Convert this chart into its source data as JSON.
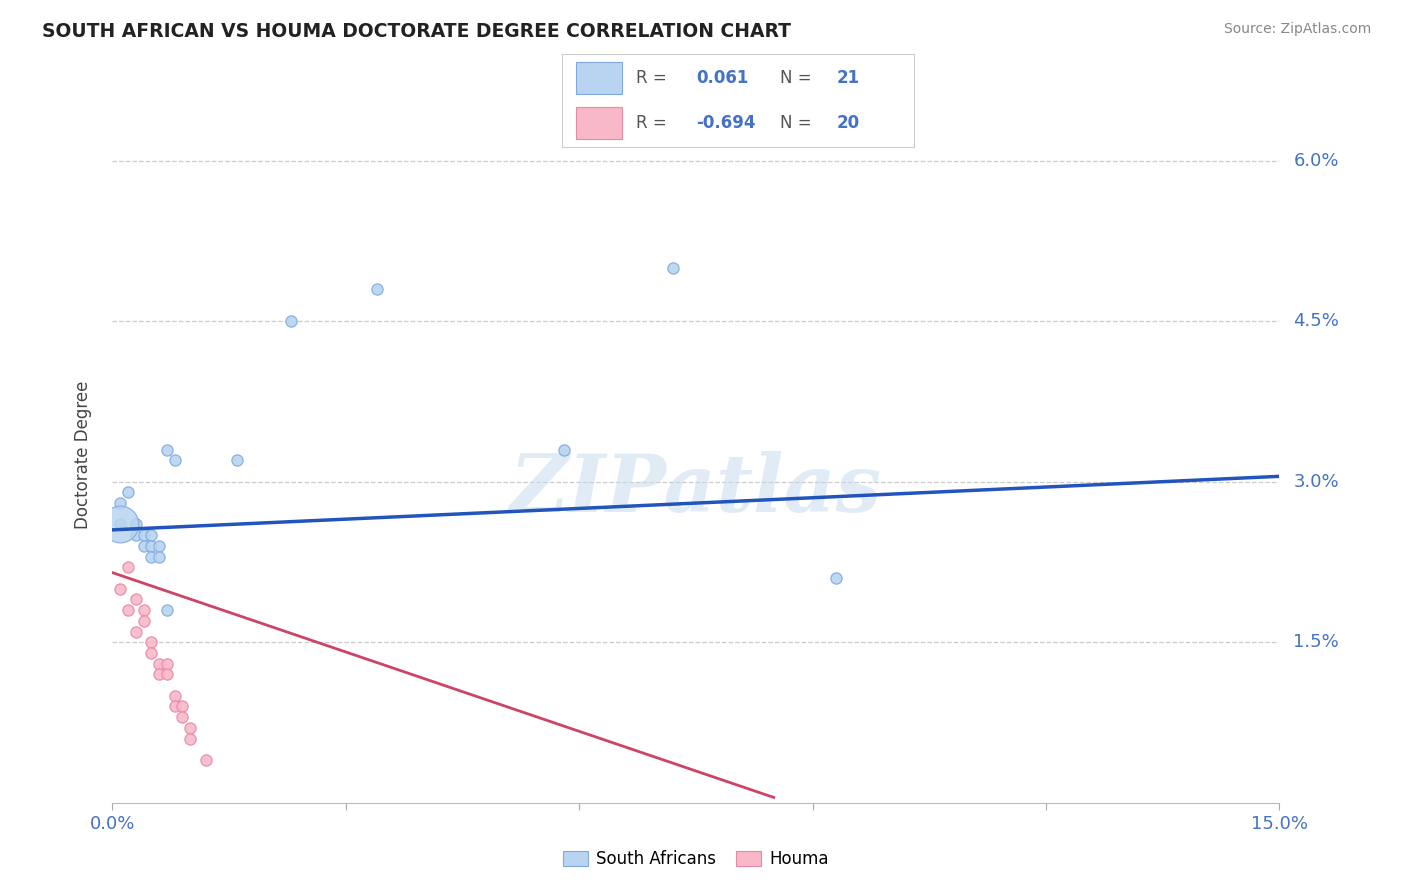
{
  "title": "SOUTH AFRICAN VS HOUMA DOCTORATE DEGREE CORRELATION CHART",
  "source": "Source: ZipAtlas.com",
  "ylabel": "Doctorate Degree",
  "xlim": [
    0.0,
    0.15
  ],
  "ylim": [
    0.0,
    0.065
  ],
  "ytick_vals": [
    0.015,
    0.03,
    0.045,
    0.06
  ],
  "ytick_labels": [
    "1.5%",
    "3.0%",
    "4.5%",
    "6.0%"
  ],
  "xtick_vals": [
    0.0,
    0.03,
    0.06,
    0.09,
    0.12,
    0.15
  ],
  "xtick_labels": [
    "0.0%",
    "",
    "",
    "",
    "",
    "15.0%"
  ],
  "blue_face": "#B8D4F0",
  "blue_edge": "#80AADE",
  "pink_face": "#F8B8C8",
  "pink_edge": "#E888A8",
  "blue_line_color": "#2255BB",
  "pink_line_color": "#CC4466",
  "legend_r_blue": "0.061",
  "legend_n_blue": "21",
  "legend_r_pink": "-0.694",
  "legend_n_pink": "20",
  "blue_x": [
    0.002,
    0.001,
    0.001,
    0.003,
    0.003,
    0.004,
    0.004,
    0.005,
    0.005,
    0.005,
    0.006,
    0.006,
    0.007,
    0.007,
    0.008,
    0.016,
    0.023,
    0.034,
    0.058,
    0.072,
    0.093
  ],
  "blue_y": [
    0.029,
    0.028,
    0.026,
    0.026,
    0.025,
    0.025,
    0.024,
    0.025,
    0.024,
    0.023,
    0.024,
    0.023,
    0.033,
    0.018,
    0.032,
    0.032,
    0.045,
    0.048,
    0.033,
    0.05,
    0.021
  ],
  "blue_s": [
    40,
    40,
    40,
    40,
    40,
    40,
    40,
    40,
    40,
    40,
    40,
    40,
    40,
    40,
    40,
    40,
    40,
    40,
    40,
    40,
    40
  ],
  "blue_big_x": [
    0.001
  ],
  "blue_big_y": [
    0.026
  ],
  "blue_big_s": [
    600
  ],
  "pink_x": [
    0.001,
    0.002,
    0.002,
    0.003,
    0.003,
    0.004,
    0.004,
    0.005,
    0.005,
    0.006,
    0.006,
    0.007,
    0.007,
    0.008,
    0.008,
    0.009,
    0.009,
    0.01,
    0.01,
    0.012
  ],
  "pink_y": [
    0.02,
    0.022,
    0.018,
    0.019,
    0.016,
    0.018,
    0.017,
    0.015,
    0.014,
    0.013,
    0.012,
    0.013,
    0.012,
    0.01,
    0.009,
    0.009,
    0.008,
    0.007,
    0.006,
    0.004
  ],
  "pink_s": [
    40,
    40,
    40,
    40,
    40,
    40,
    40,
    40,
    40,
    40,
    40,
    40,
    40,
    40,
    40,
    40,
    40,
    40,
    40,
    40
  ],
  "blue_trend_x": [
    0.0,
    0.15
  ],
  "blue_trend_y": [
    0.0255,
    0.0305
  ],
  "pink_trend_x": [
    0.0,
    0.085
  ],
  "pink_trend_y": [
    0.0215,
    0.0005
  ]
}
